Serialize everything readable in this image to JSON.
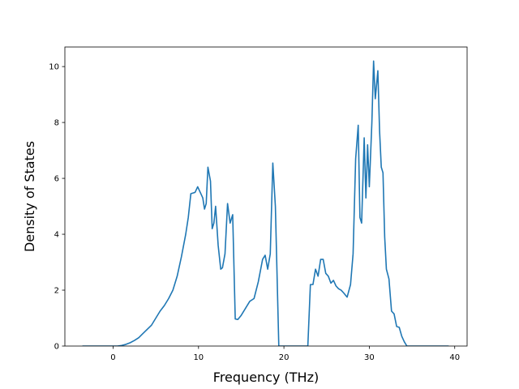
{
  "chart_data": {
    "type": "line",
    "title": "",
    "xlabel": "Frequency (THz)",
    "ylabel": "Density of States",
    "xlim": [
      -5.65,
      41.45
    ],
    "ylim": [
      0,
      10.7
    ],
    "xticks": [
      0,
      10,
      20,
      30,
      40
    ],
    "yticks": [
      0,
      2,
      4,
      6,
      8,
      10
    ],
    "xtick_labels": [
      "0",
      "10",
      "20",
      "30",
      "40"
    ],
    "ytick_labels": [
      "0",
      "2",
      "4",
      "6",
      "8",
      "10"
    ],
    "grid": false,
    "series": [
      {
        "color": "#1f77b4",
        "x": [
          -3.6,
          -2.0,
          -1.0,
          0.0,
          0.5,
          1.0,
          1.5,
          2.0,
          2.5,
          3.0,
          3.5,
          4.0,
          4.5,
          5.0,
          5.5,
          6.0,
          6.5,
          7.0,
          7.5,
          8.0,
          8.5,
          8.8,
          9.1,
          9.6,
          9.9,
          10.2,
          10.5,
          10.7,
          10.9,
          11.1,
          11.4,
          11.6,
          11.8,
          12.0,
          12.3,
          12.6,
          12.8,
          13.1,
          13.4,
          13.7,
          14.0,
          14.3,
          14.6,
          15.0,
          15.5,
          16.0,
          16.5,
          17.0,
          17.5,
          17.8,
          18.1,
          18.4,
          18.7,
          19.0,
          19.4,
          19.6,
          19.8,
          20.5,
          22.8,
          23.1,
          23.4,
          23.7,
          24.0,
          24.3,
          24.6,
          24.9,
          25.2,
          25.5,
          25.8,
          26.1,
          26.4,
          26.7,
          27.0,
          27.4,
          27.8,
          28.1,
          28.4,
          28.7,
          28.9,
          29.1,
          29.4,
          29.6,
          29.8,
          30.0,
          30.3,
          30.5,
          30.7,
          31.0,
          31.2,
          31.4,
          31.6,
          31.8,
          32.0,
          32.3,
          32.6,
          32.9,
          33.2,
          33.5,
          33.8,
          34.1,
          34.4,
          34.7,
          35.0,
          35.3,
          35.6,
          35.9,
          36.2,
          37.0,
          38.0,
          39.3
        ],
        "y": [
          0.0,
          0.0,
          0.0,
          0.0,
          0.0,
          0.02,
          0.06,
          0.12,
          0.2,
          0.3,
          0.45,
          0.6,
          0.75,
          1.0,
          1.25,
          1.45,
          1.7,
          2.0,
          2.5,
          3.2,
          4.0,
          4.6,
          5.45,
          5.5,
          5.7,
          5.5,
          5.3,
          4.9,
          5.1,
          6.4,
          5.9,
          4.2,
          4.4,
          5.0,
          3.6,
          2.75,
          2.8,
          3.3,
          5.1,
          4.4,
          4.7,
          0.97,
          0.95,
          1.1,
          1.35,
          1.6,
          1.7,
          2.3,
          3.1,
          3.25,
          2.75,
          3.3,
          6.55,
          5.0,
          0.0,
          0.0,
          0.0,
          0.0,
          0.0,
          2.2,
          2.2,
          2.75,
          2.5,
          3.1,
          3.1,
          2.6,
          2.5,
          2.25,
          2.35,
          2.15,
          2.05,
          2.0,
          1.9,
          1.75,
          2.2,
          3.3,
          6.7,
          7.9,
          4.6,
          4.4,
          7.45,
          5.3,
          7.2,
          5.7,
          8.0,
          10.2,
          8.85,
          9.85,
          7.7,
          6.4,
          6.2,
          3.9,
          2.75,
          2.4,
          1.25,
          1.15,
          0.7,
          0.67,
          0.35,
          0.15,
          0.0,
          0.0,
          0.0,
          0.0,
          0.0,
          0.0,
          0.0,
          0.0,
          0.0,
          0.0
        ]
      }
    ]
  }
}
